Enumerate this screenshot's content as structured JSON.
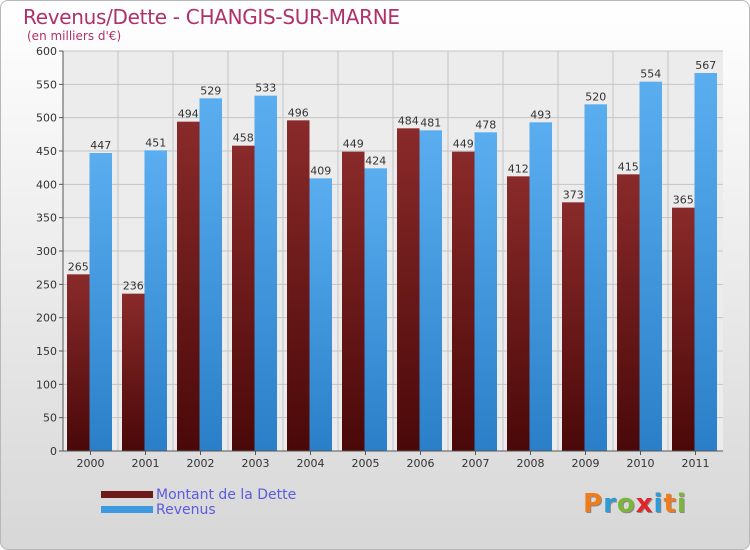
{
  "title": "Revenus/Dette - CHANGIS-SUR-MARNE",
  "subtitle": "(en milliers d'€)",
  "colors": {
    "dette": "#6f1a1a",
    "revenus": "#3e9ae0",
    "title": "#b0306a",
    "legend": "#5b5bdd"
  },
  "logo": {
    "letters": [
      "P",
      "r",
      "o",
      "x",
      "i",
      "t",
      "i"
    ],
    "colors": [
      "#ef7c1a",
      "#2e9ad6",
      "#7cb53c",
      "#e0262a",
      "#2e9ad6",
      "#ef7c1a",
      "#7cb53c"
    ]
  },
  "legend": [
    {
      "label": "Montant de la Dette",
      "color": "#6f1a1a"
    },
    {
      "label": "Revenus",
      "color": "#3e9ae0"
    }
  ],
  "chart_data": {
    "type": "bar",
    "title": "Revenus/Dette - CHANGIS-SUR-MARNE",
    "ylabel": "(en milliers d'€)",
    "xlabel": "",
    "categories": [
      "2000",
      "2001",
      "2002",
      "2003",
      "2004",
      "2005",
      "2006",
      "2007",
      "2008",
      "2009",
      "2010",
      "2011"
    ],
    "series": [
      {
        "name": "Montant de la Dette",
        "values": [
          265,
          236,
          494,
          458,
          496,
          449,
          484,
          449,
          412,
          373,
          415,
          365
        ]
      },
      {
        "name": "Revenus",
        "values": [
          447,
          451,
          529,
          533,
          409,
          424,
          481,
          478,
          493,
          520,
          554,
          567
        ]
      }
    ],
    "ylim": [
      0,
      600
    ],
    "yticks": [
      0,
      50,
      100,
      150,
      200,
      250,
      300,
      350,
      400,
      450,
      500,
      550,
      600
    ],
    "grid": true,
    "legend_position": "bottom-left"
  }
}
